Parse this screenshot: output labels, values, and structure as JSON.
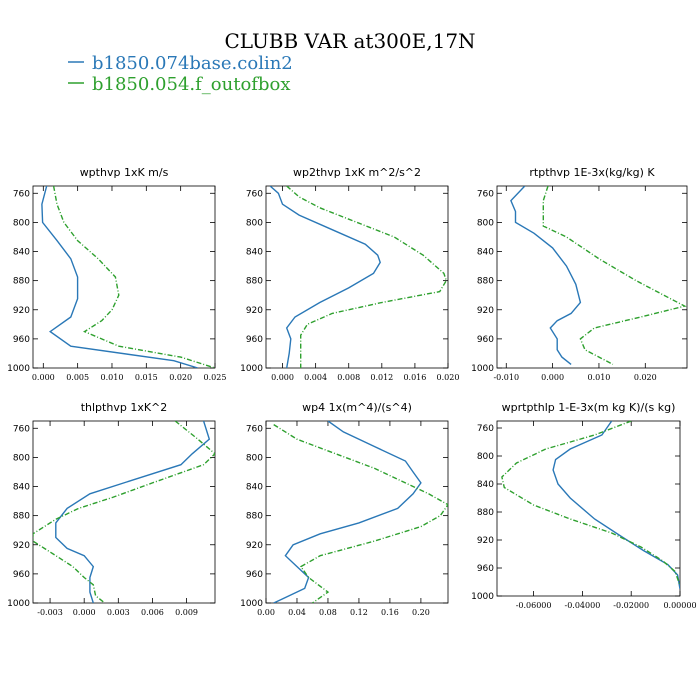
{
  "figure": {
    "title": "CLUBB VAR at300E,17N",
    "colors": {
      "series0": "#2a78b7",
      "series1": "#2ea02e"
    }
  },
  "legend": [
    {
      "label": "b1850.074base.colin2",
      "color": "#2a78b7",
      "dashed": false
    },
    {
      "label": "b1850.054.f_outofbox",
      "color": "#2ea02e",
      "dashed": true
    }
  ],
  "chart_data": [
    {
      "type": "line",
      "title": "wpthvp   1xK m/s",
      "ylim": [
        1000,
        750
      ],
      "yticks": [
        {
          "v": 760,
          "t": "760"
        },
        {
          "v": 800,
          "t": "800"
        },
        {
          "v": 840,
          "t": "840"
        },
        {
          "v": 880,
          "t": "880"
        },
        {
          "v": 920,
          "t": "920"
        },
        {
          "v": 960,
          "t": "960"
        },
        {
          "v": 1000,
          "t": "1000"
        }
      ],
      "xlim": [
        -0.0015,
        0.025
      ],
      "xticks": [
        {
          "v": 0,
          "t": "0.000"
        },
        {
          "v": 0.005,
          "t": "0.005"
        },
        {
          "v": 0.01,
          "t": "0.010"
        },
        {
          "v": 0.015,
          "t": "0.015"
        },
        {
          "v": 0.02,
          "t": "0.020"
        },
        {
          "v": 0.025,
          "t": "0.025"
        }
      ],
      "series": [
        {
          "name": "b1850.074base.colin2",
          "points": [
            [
              0.0005,
              750
            ],
            [
              -0.0002,
              775
            ],
            [
              -0.0001,
              800
            ],
            [
              0.002,
              825
            ],
            [
              0.004,
              850
            ],
            [
              0.005,
              875
            ],
            [
              0.005,
              905
            ],
            [
              0.004,
              930
            ],
            [
              0.001,
              950
            ],
            [
              0.004,
              970
            ],
            [
              0.019,
              990
            ],
            [
              0.0225,
              1000
            ]
          ]
        },
        {
          "name": "b1850.054.f_outofbox",
          "points": [
            [
              0.0015,
              750
            ],
            [
              0.002,
              775
            ],
            [
              0.003,
              800
            ],
            [
              0.005,
              825
            ],
            [
              0.008,
              850
            ],
            [
              0.0105,
              875
            ],
            [
              0.011,
              900
            ],
            [
              0.01,
              920
            ],
            [
              0.0085,
              935
            ],
            [
              0.006,
              950
            ],
            [
              0.011,
              970
            ],
            [
              0.02,
              985
            ],
            [
              0.025,
              1000
            ]
          ]
        }
      ]
    },
    {
      "type": "line",
      "title": "wp2thvp   1xK m^2/s^2",
      "ylim": [
        1000,
        750
      ],
      "yticks": [
        {
          "v": 760,
          "t": "760"
        },
        {
          "v": 800,
          "t": "800"
        },
        {
          "v": 840,
          "t": "840"
        },
        {
          "v": 880,
          "t": "880"
        },
        {
          "v": 920,
          "t": "920"
        },
        {
          "v": 960,
          "t": "960"
        },
        {
          "v": 1000,
          "t": "1000"
        }
      ],
      "xlim": [
        -0.002,
        0.02
      ],
      "xticks": [
        {
          "v": 0,
          "t": "0.000"
        },
        {
          "v": 0.004,
          "t": "0.004"
        },
        {
          "v": 0.008,
          "t": "0.008"
        },
        {
          "v": 0.012,
          "t": "0.012"
        },
        {
          "v": 0.016,
          "t": "0.016"
        },
        {
          "v": 0.02,
          "t": "0.020"
        }
      ],
      "series": [
        {
          "name": "b1850.074base.colin2",
          "points": [
            [
              -0.0015,
              750
            ],
            [
              -0.0005,
              760
            ],
            [
              0,
              775
            ],
            [
              0.002,
              790
            ],
            [
              0.006,
              810
            ],
            [
              0.01,
              830
            ],
            [
              0.0115,
              845
            ],
            [
              0.0118,
              855
            ],
            [
              0.011,
              870
            ],
            [
              0.008,
              890
            ],
            [
              0.0045,
              910
            ],
            [
              0.0015,
              930
            ],
            [
              0.0005,
              945
            ],
            [
              0.001,
              960
            ],
            [
              0.0008,
              980
            ],
            [
              0.0005,
              1000
            ]
          ]
        },
        {
          "name": "b1850.054.f_outofbox",
          "points": [
            [
              0.0005,
              750
            ],
            [
              0.002,
              765
            ],
            [
              0.0045,
              780
            ],
            [
              0.009,
              800
            ],
            [
              0.0135,
              820
            ],
            [
              0.017,
              845
            ],
            [
              0.0195,
              870
            ],
            [
              0.0198,
              880
            ],
            [
              0.019,
              895
            ],
            [
              0.012,
              910
            ],
            [
              0.006,
              925
            ],
            [
              0.003,
              940
            ],
            [
              0.0022,
              955
            ],
            [
              0.0022,
              970
            ],
            [
              0.0022,
              985
            ],
            [
              0.0022,
              1000
            ]
          ]
        }
      ]
    },
    {
      "type": "line",
      "title": "rtpthvp   1E-3x(kg/kg) K",
      "ylim": [
        1000,
        750
      ],
      "yticks": [
        {
          "v": 760,
          "t": "760"
        },
        {
          "v": 800,
          "t": "800"
        },
        {
          "v": 840,
          "t": "840"
        },
        {
          "v": 880,
          "t": "880"
        },
        {
          "v": 920,
          "t": "920"
        },
        {
          "v": 960,
          "t": "960"
        },
        {
          "v": 1000,
          "t": "1000"
        }
      ],
      "xlim": [
        -0.012,
        0.029
      ],
      "xticks": [
        {
          "v": -0.01,
          "t": "-0.010"
        },
        {
          "v": 0,
          "t": "0.000"
        },
        {
          "v": 0.01,
          "t": "0.010"
        },
        {
          "v": 0.02,
          "t": "0.020"
        }
      ],
      "series": [
        {
          "name": "b1850.074base.colin2",
          "points": [
            [
              -0.006,
              750
            ],
            [
              -0.009,
              770
            ],
            [
              -0.008,
              785
            ],
            [
              -0.008,
              800
            ],
            [
              -0.004,
              815
            ],
            [
              0,
              835
            ],
            [
              0.003,
              860
            ],
            [
              0.005,
              885
            ],
            [
              0.006,
              910
            ],
            [
              0.004,
              925
            ],
            [
              0.001,
              935
            ],
            [
              -0.0005,
              945
            ],
            [
              0.001,
              960
            ],
            [
              0.001,
              975
            ],
            [
              0.002,
              985
            ],
            [
              0.004,
              995
            ]
          ]
        },
        {
          "name": "b1850.054.f_outofbox",
          "points": [
            [
              -0.001,
              750
            ],
            [
              -0.002,
              770
            ],
            [
              -0.002,
              790
            ],
            [
              -0.002,
              805
            ],
            [
              0.003,
              820
            ],
            [
              0.01,
              850
            ],
            [
              0.018,
              880
            ],
            [
              0.024,
              900
            ],
            [
              0.0285,
              915
            ],
            [
              0.019,
              930
            ],
            [
              0.009,
              945
            ],
            [
              0.006,
              960
            ],
            [
              0.007,
              975
            ],
            [
              0.01,
              985
            ],
            [
              0.013,
              995
            ]
          ]
        }
      ]
    },
    {
      "type": "line",
      "title": "thlpthvp   1xK^2",
      "ylim": [
        1000,
        750
      ],
      "yticks": [
        {
          "v": 760,
          "t": "760"
        },
        {
          "v": 800,
          "t": "800"
        },
        {
          "v": 840,
          "t": "840"
        },
        {
          "v": 880,
          "t": "880"
        },
        {
          "v": 920,
          "t": "920"
        },
        {
          "v": 960,
          "t": "960"
        },
        {
          "v": 1000,
          "t": "1000"
        }
      ],
      "xlim": [
        -0.0045,
        0.0115
      ],
      "xticks": [
        {
          "v": -0.003,
          "t": "-0.003"
        },
        {
          "v": 0,
          "t": "0.000"
        },
        {
          "v": 0.003,
          "t": "0.003"
        },
        {
          "v": 0.006,
          "t": "0.006"
        },
        {
          "v": 0.009,
          "t": "0.009"
        }
      ],
      "series": [
        {
          "name": "b1850.074base.colin2",
          "points": [
            [
              0.0105,
              750
            ],
            [
              0.011,
              775
            ],
            [
              0.0095,
              795
            ],
            [
              0.0085,
              810
            ],
            [
              0.0045,
              830
            ],
            [
              0.0005,
              850
            ],
            [
              -0.0015,
              870
            ],
            [
              -0.0025,
              890
            ],
            [
              -0.0025,
              910
            ],
            [
              -0.0015,
              925
            ],
            [
              0,
              935
            ],
            [
              0.0008,
              950
            ],
            [
              0.0005,
              965
            ],
            [
              0.0005,
              985
            ],
            [
              0.0008,
              1000
            ]
          ]
        },
        {
          "name": "b1850.054.f_outofbox",
          "points": [
            [
              0.008,
              750
            ],
            [
              0.01,
              775
            ],
            [
              0.0115,
              795
            ],
            [
              0.0105,
              810
            ],
            [
              0.006,
              835
            ],
            [
              0.0025,
              855
            ],
            [
              -0.0005,
              870
            ],
            [
              -0.0025,
              885
            ],
            [
              -0.0045,
              905
            ],
            [
              -0.0045,
              915
            ],
            [
              -0.003,
              930
            ],
            [
              -0.001,
              950
            ],
            [
              0,
              965
            ],
            [
              0.0008,
              975
            ],
            [
              0.001,
              990
            ],
            [
              0.0018,
              1000
            ]
          ]
        }
      ]
    },
    {
      "type": "line",
      "title": "wp4   1x(m^4)/(s^4)",
      "ylim": [
        1000,
        750
      ],
      "yticks": [
        {
          "v": 760,
          "t": "760"
        },
        {
          "v": 800,
          "t": "800"
        },
        {
          "v": 840,
          "t": "840"
        },
        {
          "v": 880,
          "t": "880"
        },
        {
          "v": 920,
          "t": "920"
        },
        {
          "v": 960,
          "t": "960"
        },
        {
          "v": 1000,
          "t": "1000"
        }
      ],
      "xlim": [
        0,
        0.235
      ],
      "xticks": [
        {
          "v": 0,
          "t": "0.00"
        },
        {
          "v": 0.04,
          "t": "0.04"
        },
        {
          "v": 0.08,
          "t": "0.08"
        },
        {
          "v": 0.12,
          "t": "0.12"
        },
        {
          "v": 0.16,
          "t": "0.16"
        },
        {
          "v": 0.2,
          "t": "0.20"
        }
      ],
      "series": [
        {
          "name": "b1850.074base.colin2",
          "points": [
            [
              0.08,
              750
            ],
            [
              0.1,
              765
            ],
            [
              0.14,
              785
            ],
            [
              0.18,
              805
            ],
            [
              0.19,
              820
            ],
            [
              0.2,
              835
            ],
            [
              0.19,
              850
            ],
            [
              0.17,
              870
            ],
            [
              0.12,
              890
            ],
            [
              0.07,
              905
            ],
            [
              0.035,
              920
            ],
            [
              0.025,
              935
            ],
            [
              0.04,
              950
            ],
            [
              0.055,
              965
            ],
            [
              0.05,
              980
            ],
            [
              0.02,
              995
            ],
            [
              0.01,
              1000
            ]
          ]
        },
        {
          "name": "b1850.054.f_outofbox",
          "points": [
            [
              0.01,
              755
            ],
            [
              0.04,
              775
            ],
            [
              0.09,
              795
            ],
            [
              0.14,
              815
            ],
            [
              0.18,
              835
            ],
            [
              0.21,
              850
            ],
            [
              0.235,
              865
            ],
            [
              0.225,
              880
            ],
            [
              0.2,
              895
            ],
            [
              0.14,
              915
            ],
            [
              0.07,
              935
            ],
            [
              0.045,
              950
            ],
            [
              0.055,
              965
            ],
            [
              0.08,
              985
            ],
            [
              0.06,
              1000
            ]
          ]
        }
      ]
    },
    {
      "type": "line",
      "title": "wprtpthlp   1-E-3x(m kg K)/(s kg)",
      "ylim": [
        1000,
        750
      ],
      "yticks": [
        {
          "v": 760,
          "t": "760"
        },
        {
          "v": 800,
          "t": "800"
        },
        {
          "v": 840,
          "t": "840"
        },
        {
          "v": 880,
          "t": "880"
        },
        {
          "v": 920,
          "t": "920"
        },
        {
          "v": 960,
          "t": "960"
        },
        {
          "v": 1000,
          "t": "1000"
        }
      ],
      "xlim": [
        -0.075,
        0
      ],
      "xticks": [
        {
          "v": -0.06,
          "t": "-0.06000"
        },
        {
          "v": -0.04,
          "t": "-0.04000"
        },
        {
          "v": -0.02,
          "t": "-0.02000"
        },
        {
          "v": 0,
          "t": "0.00000"
        }
      ],
      "series": [
        {
          "name": "b1850.074base.colin2",
          "points": [
            [
              -0.028,
              750
            ],
            [
              -0.032,
              770
            ],
            [
              -0.045,
              790
            ],
            [
              -0.051,
              805
            ],
            [
              -0.052,
              820
            ],
            [
              -0.05,
              840
            ],
            [
              -0.045,
              860
            ],
            [
              -0.035,
              890
            ],
            [
              -0.024,
              915
            ],
            [
              -0.015,
              935
            ],
            [
              -0.005,
              955
            ],
            [
              -0.001,
              970
            ],
            [
              0,
              990
            ]
          ]
        },
        {
          "name": "b1850.054.f_outofbox",
          "points": [
            [
              -0.02,
              750
            ],
            [
              -0.035,
              770
            ],
            [
              -0.055,
              790
            ],
            [
              -0.067,
              810
            ],
            [
              -0.073,
              830
            ],
            [
              -0.072,
              845
            ],
            [
              -0.06,
              870
            ],
            [
              -0.045,
              890
            ],
            [
              -0.028,
              910
            ],
            [
              -0.016,
              930
            ],
            [
              -0.007,
              950
            ],
            [
              -0.002,
              965
            ],
            [
              0,
              985
            ]
          ]
        }
      ]
    }
  ]
}
